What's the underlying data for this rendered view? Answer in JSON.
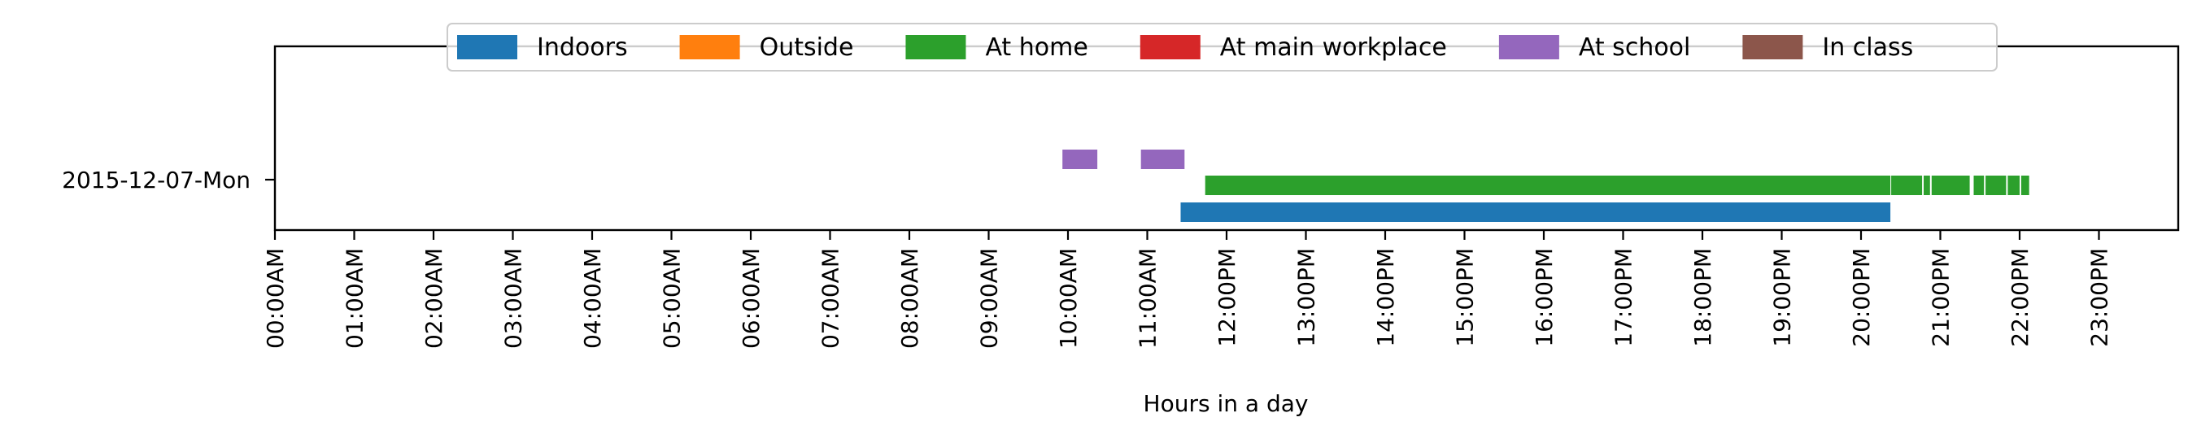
{
  "chart_data": {
    "type": "bar",
    "subtype": "horizontal-timeline",
    "xlabel": "Hours in a day",
    "x_unit": "hours",
    "xlim": [
      0,
      24
    ],
    "x_ticks": [
      {
        "value": 0,
        "label": "00:00AM"
      },
      {
        "value": 1,
        "label": "01:00AM"
      },
      {
        "value": 2,
        "label": "02:00AM"
      },
      {
        "value": 3,
        "label": "03:00AM"
      },
      {
        "value": 4,
        "label": "04:00AM"
      },
      {
        "value": 5,
        "label": "05:00AM"
      },
      {
        "value": 6,
        "label": "06:00AM"
      },
      {
        "value": 7,
        "label": "07:00AM"
      },
      {
        "value": 8,
        "label": "08:00AM"
      },
      {
        "value": 9,
        "label": "09:00AM"
      },
      {
        "value": 10,
        "label": "10:00AM"
      },
      {
        "value": 11,
        "label": "11:00AM"
      },
      {
        "value": 12,
        "label": "12:00PM"
      },
      {
        "value": 13,
        "label": "13:00PM"
      },
      {
        "value": 14,
        "label": "14:00PM"
      },
      {
        "value": 15,
        "label": "15:00PM"
      },
      {
        "value": 16,
        "label": "16:00PM"
      },
      {
        "value": 17,
        "label": "17:00PM"
      },
      {
        "value": 18,
        "label": "18:00PM"
      },
      {
        "value": 19,
        "label": "19:00PM"
      },
      {
        "value": 20,
        "label": "20:00PM"
      },
      {
        "value": 21,
        "label": "21:00PM"
      },
      {
        "value": 22,
        "label": "22:00PM"
      },
      {
        "value": 23,
        "label": "23:00PM"
      }
    ],
    "y_categories": [
      "2015-12-07-Mon"
    ],
    "legend_position": "top-center",
    "series": [
      {
        "name": "Indoors",
        "color": "#1f77b4",
        "intervals": [
          [
            11.42,
            20.37
          ]
        ]
      },
      {
        "name": "Outside",
        "color": "#ff7f0e",
        "intervals": []
      },
      {
        "name": "At home",
        "color": "#2ca02c",
        "intervals": [
          [
            11.73,
            20.37
          ],
          [
            20.38,
            20.77
          ],
          [
            20.79,
            20.87
          ],
          [
            20.89,
            21.37
          ],
          [
            21.42,
            21.55
          ],
          [
            21.57,
            21.83
          ],
          [
            21.85,
            22.0
          ],
          [
            22.02,
            22.12
          ]
        ]
      },
      {
        "name": "At main workplace",
        "color": "#d62728",
        "intervals": []
      },
      {
        "name": "At school",
        "color": "#9467bd",
        "intervals": [
          [
            9.93,
            10.37
          ],
          [
            10.92,
            11.47
          ]
        ]
      },
      {
        "name": "In class",
        "color": "#8c564b",
        "intervals": []
      }
    ]
  }
}
